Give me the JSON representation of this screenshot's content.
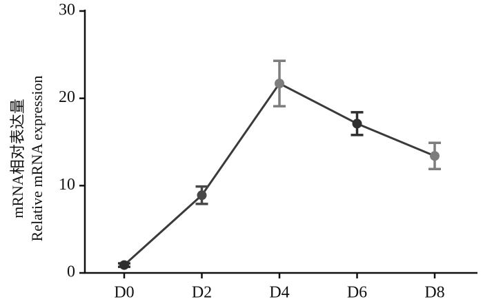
{
  "chart_data": {
    "type": "line",
    "y_label_lines": [
      "mRNA相对表达量",
      "Relative mRNA expression"
    ],
    "categories": [
      "D0",
      "D2",
      "D4",
      "D6",
      "D8"
    ],
    "series": [
      {
        "color": "#3a3a3a",
        "values": [
          0.9,
          8.9,
          21.7,
          17.1,
          13.4
        ],
        "errors": [
          0.2,
          1.0,
          2.6,
          1.3,
          1.5
        ],
        "point_colors": [
          "#2e2e2e",
          "#474747",
          "#7d7d7d",
          "#2e2e2e",
          "#7d7d7d"
        ]
      }
    ],
    "ylim": [
      0,
      30
    ],
    "yticks": [
      0,
      10,
      20,
      30
    ]
  }
}
